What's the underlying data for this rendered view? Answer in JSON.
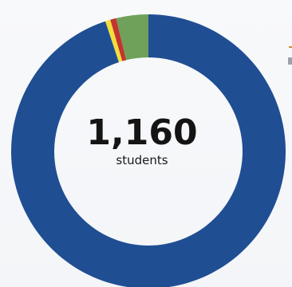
{
  "chart_data": {
    "type": "pie",
    "style": "donut",
    "categories": [
      "",
      "",
      "",
      ""
    ],
    "values": [
      1101,
      7,
      8,
      44
    ],
    "colors": [
      "#1f4e93",
      "#f2df3a",
      "#c2342f",
      "#6fa15a"
    ],
    "title": "",
    "center_value": "1,160",
    "center_label": "students"
  }
}
